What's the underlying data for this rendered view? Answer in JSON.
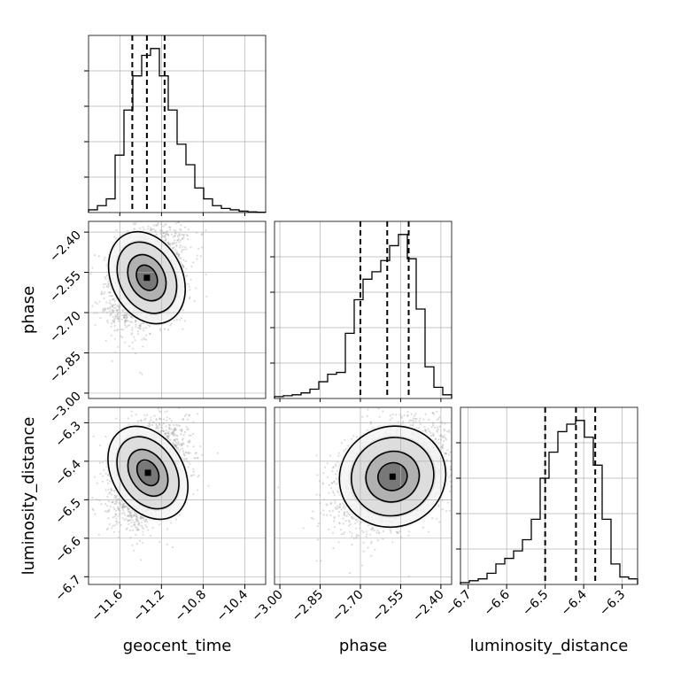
{
  "chart_data": {
    "type": "corner",
    "parameters": [
      "geocent_time",
      "phase",
      "luminosity_distance"
    ],
    "ranges": {
      "geocent_time": [
        -11.9,
        -10.2
      ],
      "phase": [
        -3.02,
        -2.36
      ],
      "luminosity_distance": [
        -6.72,
        -6.26
      ]
    },
    "ticks": {
      "geocent_time": [
        "−11.6",
        "−11.2",
        "−10.8",
        "−10.4"
      ],
      "phase": [
        "−3.00",
        "−2.85",
        "−2.70",
        "−2.55",
        "−2.40"
      ],
      "luminosity_distance": [
        "−6.7",
        "−6.6",
        "−6.5",
        "−6.4",
        "−6.3"
      ]
    },
    "tick_values": {
      "geocent_time": [
        -11.6,
        -11.2,
        -10.8,
        -10.4
      ],
      "phase": [
        -3.0,
        -2.85,
        -2.7,
        -2.55,
        -2.4
      ],
      "luminosity_distance": [
        -6.7,
        -6.6,
        -6.5,
        -6.4,
        -6.3
      ]
    },
    "quantiles": {
      "geocent_time": [
        -11.48,
        -11.34,
        -11.17
      ],
      "phase": [
        -2.7,
        -2.6,
        -2.52
      ],
      "luminosity_distance": [
        -6.5,
        -6.42,
        -6.37
      ]
    },
    "histograms": {
      "geocent_time": [
        0.2,
        0.5,
        1.0,
        4.2,
        7.5,
        10.0,
        11.5,
        12.0,
        10.0,
        7.5,
        5.0,
        3.5,
        1.8,
        1.0,
        0.5,
        0.3,
        0.2,
        0.1,
        0.05,
        0.02
      ],
      "phase": [
        0.1,
        0.15,
        0.2,
        0.3,
        0.5,
        0.9,
        1.3,
        1.4,
        3.5,
        5.3,
        6.4,
        6.8,
        7.4,
        8.2,
        8.8,
        7.5,
        4.8,
        1.7,
        0.6,
        0.2
      ],
      "luminosity_distance": [
        0.1,
        0.2,
        0.3,
        0.6,
        1.1,
        1.4,
        1.8,
        2.4,
        3.5,
        5.7,
        7.1,
        8.2,
        8.6,
        8.8,
        7.9,
        6.4,
        3.5,
        1.1,
        0.4,
        0.3
      ]
    },
    "maxima": {
      "geocent_time": [
        -11.33,
        -2.57
      ],
      "luminosity_distance_geocent": [
        -11.33,
        -6.43
      ],
      "luminosity_distance_phase": [
        -2.56,
        -6.42
      ]
    },
    "grid": true
  }
}
